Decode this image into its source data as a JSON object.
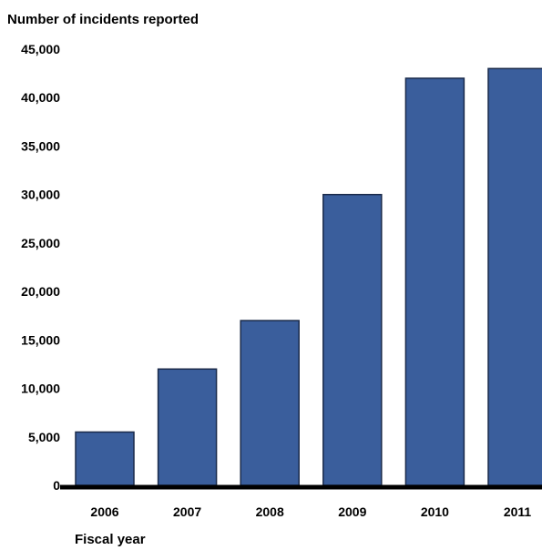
{
  "chart_data": {
    "type": "bar",
    "title": "Number of incidents reported",
    "xlabel": "Fiscal year",
    "ylabel": "",
    "categories": [
      "2006",
      "2007",
      "2008",
      "2009",
      "2010",
      "2011"
    ],
    "values": [
      5500,
      12000,
      17000,
      30000,
      42000,
      43000
    ],
    "ylim": [
      0,
      45000
    ],
    "yticks": [
      "0",
      "5,000",
      "10,000",
      "15,000",
      "20,000",
      "25,000",
      "30,000",
      "35,000",
      "40,000",
      "45,000"
    ],
    "grid": false,
    "legend": "none",
    "bar_color": "#3A5E9C",
    "bar_outline": "#1A2A4A",
    "axis_color": "#000000"
  }
}
